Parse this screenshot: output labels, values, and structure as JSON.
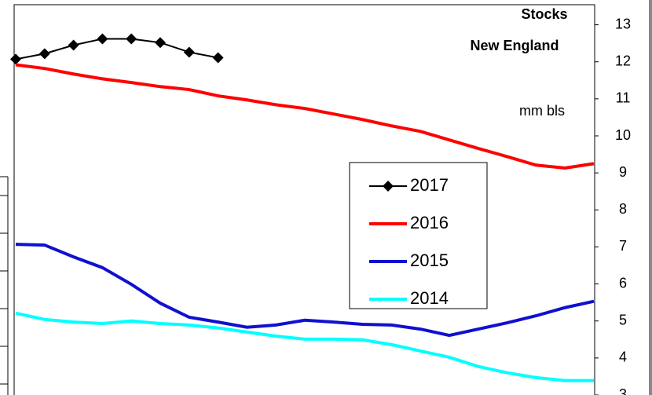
{
  "chart_data": {
    "type": "line",
    "title": [
      "Stocks",
      "New England"
    ],
    "annotation": "mm bls",
    "x": [
      0,
      1,
      2,
      3,
      4,
      5,
      6,
      7,
      8,
      9,
      10,
      11,
      12,
      13,
      14,
      15,
      16,
      17,
      18,
      19,
      20
    ],
    "xlim": [
      0,
      20
    ],
    "ylim": [
      3,
      13.5
    ],
    "yticks": [
      3,
      4,
      5,
      6,
      7,
      8,
      9,
      10,
      11,
      12,
      13
    ],
    "y_axis_side": "right",
    "series": [
      {
        "name": "2017",
        "color": "#000000",
        "marker": "diamond",
        "values": [
          12.07,
          12.22,
          12.45,
          12.62,
          12.62,
          12.52,
          12.26,
          12.11,
          null,
          null,
          null,
          null,
          null,
          null,
          null,
          null,
          null,
          null,
          null,
          null,
          null
        ]
      },
      {
        "name": "2016",
        "color": "#ff0000",
        "values": [
          11.92,
          11.82,
          11.67,
          11.54,
          11.44,
          11.33,
          11.25,
          11.08,
          10.97,
          10.84,
          10.74,
          10.59,
          10.44,
          10.27,
          10.12,
          9.89,
          9.66,
          9.44,
          9.21,
          9.13,
          9.25
        ]
      },
      {
        "name": "2015",
        "color": "#1010d0",
        "values": [
          7.07,
          7.05,
          6.73,
          6.44,
          5.99,
          5.48,
          5.1,
          4.97,
          4.83,
          4.89,
          5.02,
          4.97,
          4.91,
          4.89,
          4.78,
          4.61,
          4.78,
          4.95,
          5.14,
          5.36,
          5.53
        ]
      },
      {
        "name": "2014",
        "color": "#00ffff",
        "values": [
          5.21,
          5.04,
          4.97,
          4.93,
          5.0,
          4.93,
          4.89,
          4.81,
          4.7,
          4.59,
          4.51,
          4.51,
          4.49,
          4.36,
          4.19,
          4.02,
          3.77,
          3.6,
          3.47,
          3.39,
          3.39
        ]
      }
    ]
  }
}
